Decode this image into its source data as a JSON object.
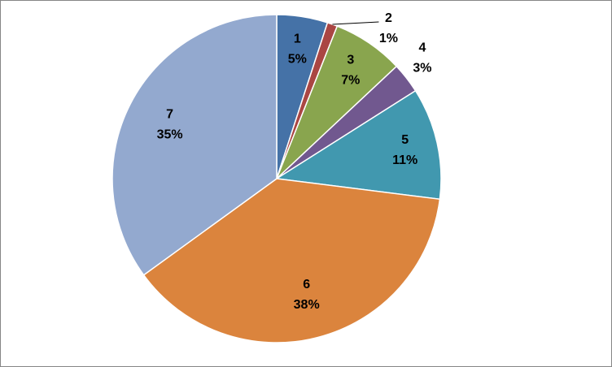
{
  "chart_data": {
    "type": "pie",
    "categories": [
      "1",
      "2",
      "3",
      "4",
      "5",
      "6",
      "7"
    ],
    "values": [
      5,
      1,
      7,
      3,
      11,
      38,
      35
    ],
    "value_labels": [
      "5%",
      "1%",
      "7%",
      "3%",
      "11%",
      "38%",
      "35%"
    ],
    "colors": [
      "#4572a7",
      "#aa4643",
      "#89a54e",
      "#71588f",
      "#4198af",
      "#db843d",
      "#93a9cf"
    ]
  }
}
